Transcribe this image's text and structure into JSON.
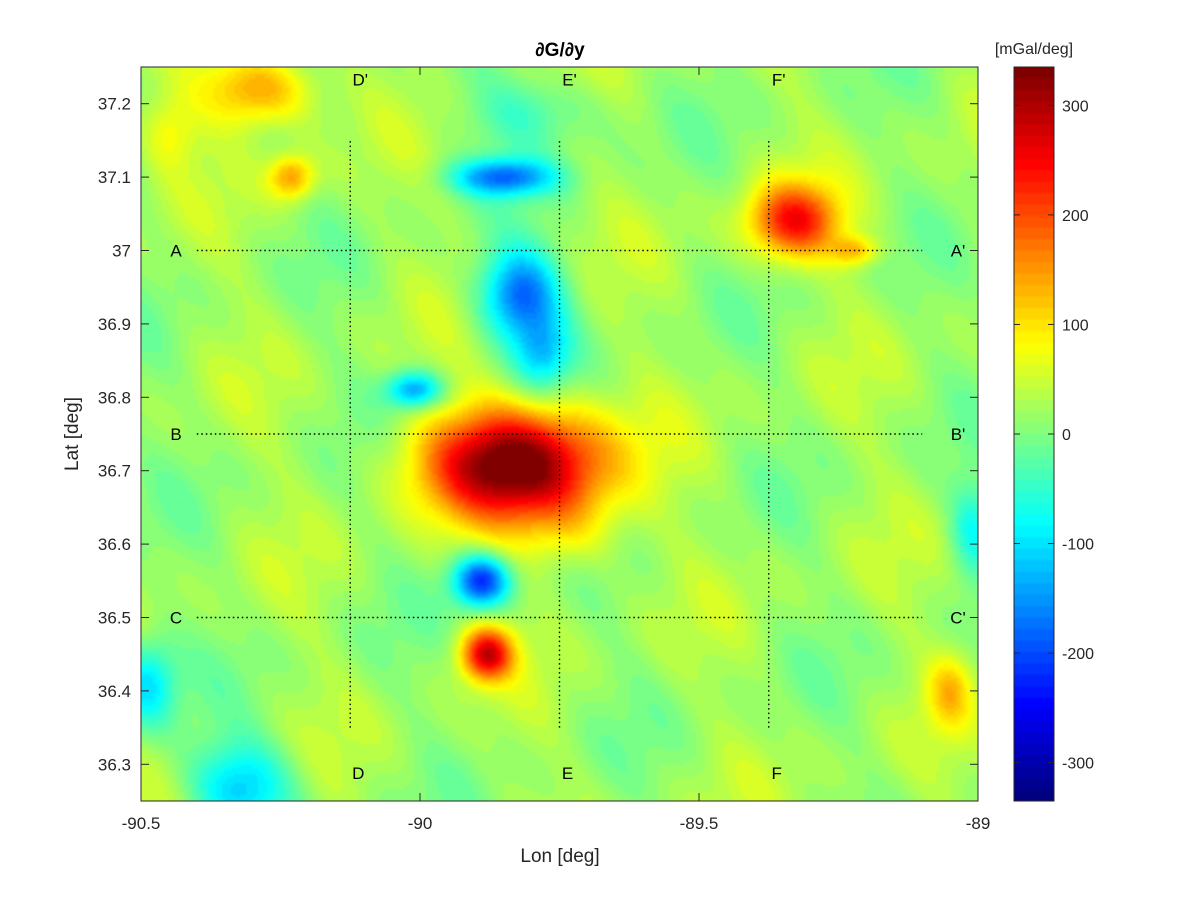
{
  "chart_data": {
    "type": "heatmap",
    "title": "∂G/∂y",
    "xlabel": "Lon [deg]",
    "ylabel": "Lat [deg]",
    "xlim": [
      -90.5,
      -89
    ],
    "ylim": [
      36.25,
      37.25
    ],
    "x_ticks": [
      -90.5,
      -90,
      -89.5,
      -89
    ],
    "x_tick_labels": [
      "-90.5",
      "-90",
      "-89.5",
      "-89"
    ],
    "y_ticks": [
      36.3,
      36.4,
      36.5,
      36.6,
      36.7,
      36.8,
      36.9,
      37.0,
      37.1,
      37.2
    ],
    "y_tick_labels": [
      "36.3",
      "36.4",
      "36.5",
      "36.6",
      "36.7",
      "36.8",
      "36.9",
      "37",
      "37.1",
      "37.2"
    ],
    "colorbar": {
      "label": "[mGal/deg]",
      "colormap": "jet",
      "clim": [
        -335,
        335
      ],
      "ticks": [
        -300,
        -200,
        -100,
        0,
        100,
        200,
        300
      ],
      "tick_labels": [
        "-300",
        "-200",
        "-100",
        "0",
        "100",
        "200",
        "300"
      ]
    },
    "base_value": 20,
    "anomalies": [
      {
        "lon": -89.83,
        "lat": 36.71,
        "value": 330,
        "rx": 0.16,
        "ry": 0.075
      },
      {
        "lon": -89.73,
        "lat": 36.62,
        "value": 60,
        "rx": 0.1,
        "ry": 0.06
      },
      {
        "lon": -89.88,
        "lat": 36.45,
        "value": 250,
        "rx": 0.045,
        "ry": 0.035
      },
      {
        "lon": -89.89,
        "lat": 36.55,
        "value": -240,
        "rx": 0.05,
        "ry": 0.035
      },
      {
        "lon": -89.82,
        "lat": 36.94,
        "value": -200,
        "rx": 0.07,
        "ry": 0.06
      },
      {
        "lon": -89.78,
        "lat": 36.86,
        "value": -110,
        "rx": 0.05,
        "ry": 0.05
      },
      {
        "lon": -89.85,
        "lat": 37.1,
        "value": -180,
        "rx": 0.09,
        "ry": 0.025
      },
      {
        "lon": -90.01,
        "lat": 36.81,
        "value": -170,
        "rx": 0.05,
        "ry": 0.025
      },
      {
        "lon": -89.33,
        "lat": 37.04,
        "value": 210,
        "rx": 0.08,
        "ry": 0.05
      },
      {
        "lon": -89.22,
        "lat": 37.0,
        "value": 100,
        "rx": 0.04,
        "ry": 0.02
      },
      {
        "lon": -90.29,
        "lat": 37.22,
        "value": 140,
        "rx": 0.1,
        "ry": 0.05
      },
      {
        "lon": -90.23,
        "lat": 37.1,
        "value": 130,
        "rx": 0.04,
        "ry": 0.03
      },
      {
        "lon": -90.32,
        "lat": 36.27,
        "value": -130,
        "rx": 0.09,
        "ry": 0.06
      },
      {
        "lon": -90.49,
        "lat": 36.41,
        "value": -120,
        "rx": 0.05,
        "ry": 0.06
      },
      {
        "lon": -89.01,
        "lat": 36.62,
        "value": -90,
        "rx": 0.04,
        "ry": 0.06
      },
      {
        "lon": -89.8,
        "lat": 37.19,
        "value": -60,
        "rx": 0.12,
        "ry": 0.05
      },
      {
        "lon": -90.45,
        "lat": 37.16,
        "value": 60,
        "rx": 0.05,
        "ry": 0.05
      },
      {
        "lon": -89.05,
        "lat": 36.4,
        "value": 90,
        "rx": 0.04,
        "ry": 0.05
      }
    ],
    "profiles": [
      {
        "start": "A",
        "end": "A'",
        "orientation": "horizontal",
        "lat": 37.0,
        "lon_from": -90.4,
        "lon_to": -89.1
      },
      {
        "start": "B",
        "end": "B'",
        "orientation": "horizontal",
        "lat": 36.75,
        "lon_from": -90.4,
        "lon_to": -89.1
      },
      {
        "start": "C",
        "end": "C'",
        "orientation": "horizontal",
        "lat": 36.5,
        "lon_from": -90.4,
        "lon_to": -89.1
      },
      {
        "start": "D",
        "end": "D'",
        "orientation": "vertical",
        "lon": -90.125,
        "lat_from": 36.35,
        "lat_to": 37.15
      },
      {
        "start": "E",
        "end": "E'",
        "orientation": "vertical",
        "lon": -89.75,
        "lat_from": 36.35,
        "lat_to": 37.15
      },
      {
        "start": "F",
        "end": "F'",
        "orientation": "vertical",
        "lon": -89.375,
        "lat_from": 36.35,
        "lat_to": 37.15
      }
    ]
  }
}
